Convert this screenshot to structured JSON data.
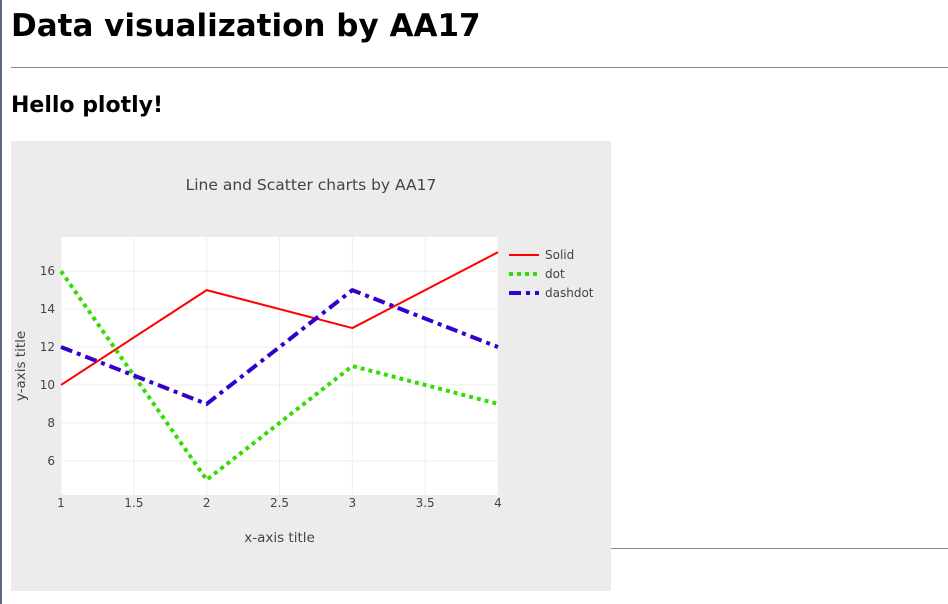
{
  "page": {
    "heading": "Data visualization by AA17",
    "subheading": "Hello plotly!"
  },
  "chart_data": {
    "type": "line",
    "title": "Line and Scatter charts by AA17",
    "xlabel": "x-axis title",
    "ylabel": "y-axis title",
    "xlim": [
      1,
      4
    ],
    "ylim": [
      4.2,
      17.8
    ],
    "x_ticks": [
      1,
      1.5,
      2,
      2.5,
      3,
      3.5,
      4
    ],
    "x_tick_labels": [
      "1",
      "1.5",
      "2",
      "2.5",
      "3",
      "3.5",
      "4"
    ],
    "y_ticks": [
      6,
      8,
      10,
      12,
      14,
      16
    ],
    "y_tick_labels": [
      "6",
      "8",
      "10",
      "12",
      "14",
      "16"
    ],
    "grid": true,
    "legend_position": "top-right",
    "plot_background": "#ffffff",
    "paper_background": "#ececec",
    "series": [
      {
        "name": "Solid",
        "x": [
          1,
          2,
          3,
          4
        ],
        "y": [
          10,
          15,
          13,
          17
        ],
        "color": "#ff0000",
        "dash": "solid"
      },
      {
        "name": "dot",
        "x": [
          1,
          2,
          3,
          4
        ],
        "y": [
          16,
          5,
          11,
          9
        ],
        "color": "#33dd00",
        "dash": "dot"
      },
      {
        "name": "dashdot",
        "x": [
          1,
          2,
          3,
          4
        ],
        "y": [
          12,
          9,
          15,
          12
        ],
        "color": "#3300cc",
        "dash": "dashdot"
      }
    ]
  }
}
